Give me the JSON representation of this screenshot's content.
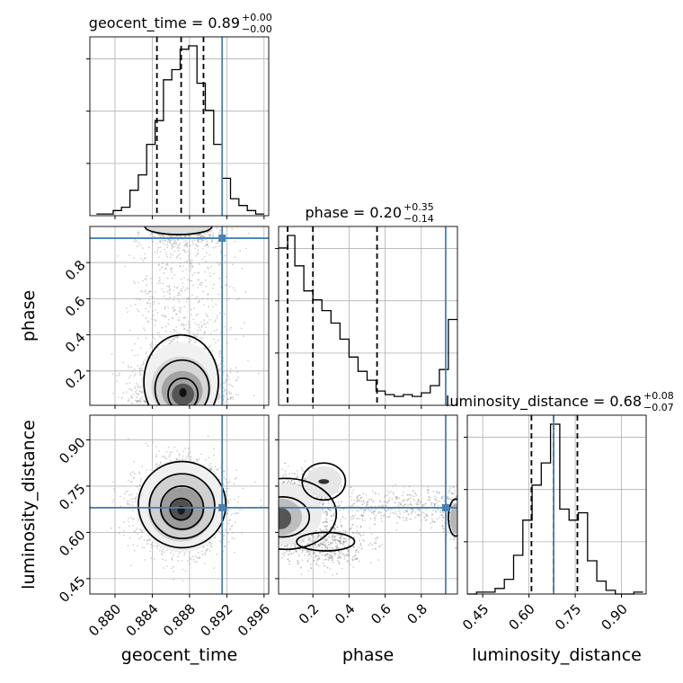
{
  "chart_data": {
    "type": "corner",
    "params": [
      "geocent_time",
      "phase",
      "luminosity_distance"
    ],
    "axis_labels": {
      "geocent_time": "geocent_time",
      "phase": "phase",
      "luminosity_distance": "luminosity_distance"
    },
    "truth": {
      "geocent_time": 0.8915,
      "phase": 0.935,
      "luminosity_distance": 0.68
    },
    "ranges": {
      "geocent_time": [
        0.8773,
        0.8965
      ],
      "phase": [
        0.01,
        1.0
      ],
      "luminosity_distance": [
        0.4,
        0.98
      ]
    },
    "ticks": {
      "geocent_time": [
        "0.880",
        "0.884",
        "0.888",
        "0.892",
        "0.896"
      ],
      "phase": [
        "0.2",
        "0.4",
        "0.6",
        "0.8"
      ],
      "luminosity_distance": [
        "0.45",
        "0.60",
        "0.75",
        "0.90"
      ]
    },
    "titles": [
      {
        "param": "geocent_time",
        "main": "geocent_time = 0.89",
        "plus": "+0.00",
        "minus": "−0.00"
      },
      {
        "param": "phase",
        "main": "phase = 0.20",
        "plus": "+0.35",
        "minus": "−0.14"
      },
      {
        "param": "luminosity_distance",
        "main": "luminosity_distance = 0.68",
        "plus": "+0.08",
        "minus": "−0.07"
      }
    ],
    "histograms": {
      "geocent_time": {
        "quantiles": [
          0.8845,
          0.8871,
          0.8895
        ],
        "bin_edges": [
          0.878,
          0.8789,
          0.8798,
          0.8807,
          0.8816,
          0.8825,
          0.8834,
          0.8843,
          0.8852,
          0.8861,
          0.887,
          0.8879,
          0.8888,
          0.8897,
          0.8906,
          0.8915,
          0.8924,
          0.8933,
          0.8942,
          0.8951,
          0.896
        ],
        "counts": [
          1,
          1,
          3,
          5,
          15,
          24,
          42,
          56,
          80,
          86,
          98,
          100,
          78,
          62,
          42,
          22,
          10,
          6,
          3,
          1
        ]
      },
      "phase": {
        "quantiles": [
          0.06,
          0.2,
          0.555
        ],
        "bin_edges": [
          0.01,
          0.06,
          0.1,
          0.15,
          0.2,
          0.25,
          0.3,
          0.35,
          0.4,
          0.45,
          0.5,
          0.55,
          0.6,
          0.65,
          0.7,
          0.75,
          0.8,
          0.85,
          0.9,
          0.95,
          1.0
        ],
        "counts": [
          88,
          95,
          78,
          64,
          59,
          53,
          46,
          37,
          27,
          19,
          14,
          8,
          6,
          5,
          6,
          5,
          7,
          11,
          20,
          48
        ]
      },
      "luminosity_distance": {
        "quantiles": [
          0.608,
          0.68,
          0.757
        ],
        "bin_edges": [
          0.4,
          0.43,
          0.46,
          0.49,
          0.52,
          0.55,
          0.58,
          0.61,
          0.64,
          0.67,
          0.7,
          0.73,
          0.76,
          0.79,
          0.82,
          0.85,
          0.88,
          0.91,
          0.94,
          0.97
        ],
        "counts": [
          0,
          1,
          1,
          3,
          8,
          21,
          40,
          59,
          71,
          92,
          46,
          40,
          44,
          18,
          7,
          2,
          0,
          0,
          1
        ]
      }
    }
  }
}
